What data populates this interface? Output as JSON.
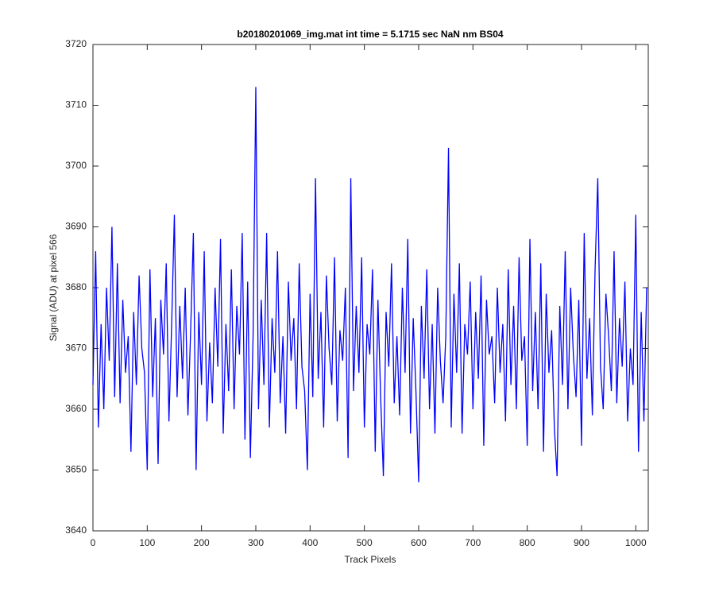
{
  "chart_data": {
    "type": "line",
    "title": "b20180201069_img.mat int time = 5.1715 sec  NaN nm BS04",
    "x_label": "Track Pixels",
    "y_label": "Signal (ADU) at pixel 566",
    "xlim": [
      0,
      1023
    ],
    "ylim": [
      3640,
      3720
    ],
    "xticks": [
      0,
      100,
      200,
      300,
      400,
      500,
      600,
      700,
      800,
      900,
      1000
    ],
    "yticks": [
      3640,
      3650,
      3660,
      3670,
      3680,
      3690,
      3700,
      3710,
      3720
    ],
    "grid": false,
    "x": [
      0,
      5,
      10,
      15,
      20,
      25,
      30,
      35,
      40,
      45,
      50,
      55,
      60,
      65,
      70,
      75,
      80,
      85,
      90,
      95,
      100,
      105,
      110,
      115,
      120,
      125,
      130,
      135,
      140,
      145,
      150,
      155,
      160,
      165,
      170,
      175,
      180,
      185,
      190,
      195,
      200,
      205,
      210,
      215,
      220,
      225,
      230,
      235,
      240,
      245,
      250,
      255,
      260,
      265,
      270,
      275,
      280,
      285,
      290,
      295,
      300,
      305,
      310,
      315,
      320,
      325,
      330,
      335,
      340,
      345,
      350,
      355,
      360,
      365,
      370,
      375,
      380,
      385,
      390,
      395,
      400,
      405,
      410,
      415,
      420,
      425,
      430,
      435,
      440,
      445,
      450,
      455,
      460,
      465,
      470,
      475,
      480,
      485,
      490,
      495,
      500,
      505,
      510,
      515,
      520,
      525,
      530,
      535,
      540,
      545,
      550,
      555,
      560,
      565,
      570,
      575,
      580,
      585,
      590,
      595,
      600,
      605,
      610,
      615,
      620,
      625,
      630,
      635,
      640,
      645,
      650,
      655,
      660,
      665,
      670,
      675,
      680,
      685,
      690,
      695,
      700,
      705,
      710,
      715,
      720,
      725,
      730,
      735,
      740,
      745,
      750,
      755,
      760,
      765,
      770,
      775,
      780,
      785,
      790,
      795,
      800,
      805,
      810,
      815,
      820,
      825,
      830,
      835,
      840,
      845,
      850,
      855,
      860,
      865,
      870,
      875,
      880,
      885,
      890,
      895,
      900,
      905,
      910,
      915,
      920,
      925,
      930,
      935,
      940,
      945,
      950,
      955,
      960,
      965,
      970,
      975,
      980,
      985,
      990,
      995,
      1000,
      1005,
      1010,
      1015,
      1020
    ],
    "series": [
      {
        "color": "#0000ff",
        "values": [
          3664,
          3686,
          3657,
          3674,
          3660,
          3680,
          3668,
          3690,
          3662,
          3684,
          3661,
          3678,
          3666,
          3672,
          3653,
          3676,
          3664,
          3682,
          3670,
          3666,
          3650,
          3683,
          3662,
          3675,
          3651,
          3678,
          3669,
          3684,
          3658,
          3674,
          3692,
          3662,
          3677,
          3665,
          3680,
          3659,
          3673,
          3689,
          3650,
          3676,
          3664,
          3686,
          3658,
          3671,
          3661,
          3680,
          3667,
          3688,
          3656,
          3674,
          3663,
          3683,
          3660,
          3677,
          3669,
          3689,
          3655,
          3681,
          3652,
          3672,
          3713,
          3660,
          3678,
          3664,
          3689,
          3657,
          3675,
          3666,
          3686,
          3661,
          3672,
          3656,
          3681,
          3668,
          3675,
          3660,
          3684,
          3667,
          3663,
          3650,
          3679,
          3662,
          3698,
          3665,
          3676,
          3657,
          3682,
          3670,
          3664,
          3685,
          3658,
          3673,
          3668,
          3680,
          3652,
          3698,
          3663,
          3677,
          3666,
          3685,
          3657,
          3674,
          3669,
          3683,
          3653,
          3678,
          3662,
          3649,
          3676,
          3667,
          3684,
          3661,
          3672,
          3659,
          3680,
          3666,
          3688,
          3656,
          3675,
          3663,
          3648,
          3677,
          3665,
          3683,
          3660,
          3674,
          3656,
          3680,
          3668,
          3661,
          3672,
          3703,
          3657,
          3679,
          3666,
          3684,
          3656,
          3674,
          3669,
          3681,
          3660,
          3676,
          3665,
          3682,
          3654,
          3678,
          3669,
          3672,
          3661,
          3680,
          3666,
          3674,
          3658,
          3683,
          3664,
          3677,
          3660,
          3685,
          3668,
          3672,
          3654,
          3688,
          3663,
          3676,
          3660,
          3684,
          3653,
          3679,
          3666,
          3673,
          3657,
          3649,
          3677,
          3664,
          3686,
          3660,
          3680,
          3669,
          3662,
          3678,
          3654,
          3689,
          3665,
          3675,
          3659,
          3683,
          3698,
          3667,
          3660,
          3679,
          3672,
          3663,
          3686,
          3661,
          3675,
          3667,
          3681,
          3658,
          3670,
          3664,
          3692,
          3653,
          3676,
          3658,
          3680
        ]
      }
    ]
  }
}
